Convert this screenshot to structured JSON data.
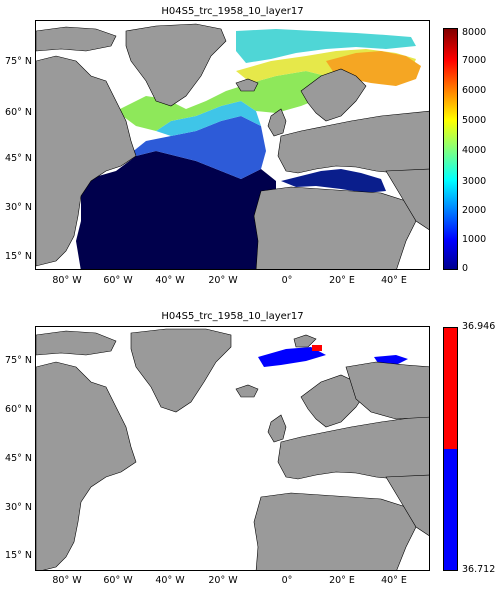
{
  "panels": [
    {
      "title": "H04S5_trc_1958_10_layer17",
      "colorbar": {
        "ticks": [
          "8000",
          "7000",
          "6000",
          "5000",
          "4000",
          "3000",
          "2000",
          "1000",
          "0"
        ],
        "min": 0,
        "max": 8000,
        "colormap": "jet"
      }
    },
    {
      "title": "H04S5_trc_1958_10_layer17",
      "colorbar": {
        "ticks": [
          "36.946",
          "36.712"
        ],
        "min": 36.712,
        "max": 36.946,
        "colors": [
          "#ff0000",
          "#0000ff"
        ]
      }
    }
  ],
  "axes": {
    "lat_ticks": [
      "75° N",
      "60° N",
      "45° N",
      "30° N",
      "15° N"
    ],
    "lon_ticks": [
      "80° W",
      "60° W",
      "40° W",
      "20° W",
      "0°",
      "20° E",
      "40° E"
    ]
  },
  "colors": {
    "land": "#9a9a9a",
    "ocean_nodata": "#ffffff",
    "deep": "#00004c"
  }
}
